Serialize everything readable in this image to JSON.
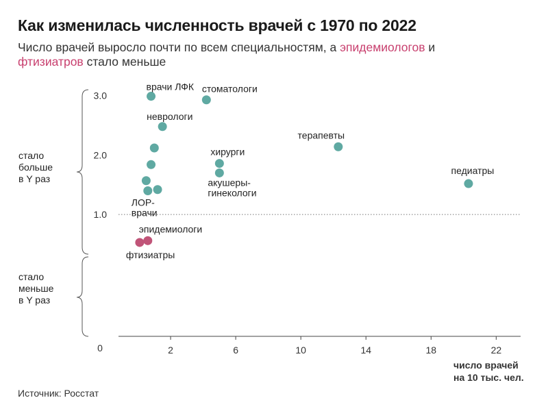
{
  "header": {
    "title": "Как изменилась численность врачей с 1970 по 2022",
    "subtitle_part1": "Число врачей выросло почти по всем специальностям, а ",
    "subtitle_hl1": "эпидемиологов",
    "subtitle_part2": " и ",
    "subtitle_hl2": "фтизиатров",
    "subtitle_part3": " стало меньше"
  },
  "side_labels": {
    "more": [
      "стало",
      "больше",
      "в Y раз"
    ],
    "less": [
      "стало",
      "меньше",
      "в Y раз"
    ]
  },
  "footer": {
    "source": "Источник: Росстат"
  },
  "colors": {
    "teal": "#5fa9a2",
    "red": "#c05478",
    "highlight": "#c83f6e"
  },
  "chart_data": {
    "type": "scatter",
    "xlabel": [
      "число врачей",
      "на 10 тыс. чел."
    ],
    "xticks": [
      "2",
      "6",
      "10",
      "14",
      "18",
      "22"
    ],
    "xtick_values": [
      2,
      6,
      10,
      14,
      18,
      22
    ],
    "yticks": [
      "1.0",
      "2.0",
      "3.0"
    ],
    "ytick_values": [
      1.0,
      2.0,
      3.0
    ],
    "origin_label": "0",
    "xlim": [
      -1.2,
      23.5
    ],
    "ylim": [
      -1.05,
      3.1
    ],
    "reference_line_y": 1.0,
    "points": [
      {
        "label": "врачи ЛФК",
        "x": 0.8,
        "y": 2.99,
        "color": "teal"
      },
      {
        "label": "стоматологи",
        "x": 4.2,
        "y": 2.93,
        "color": "teal"
      },
      {
        "label": "неврологи",
        "x": 1.5,
        "y": 2.48,
        "color": "teal"
      },
      {
        "label": "",
        "x": 1.0,
        "y": 2.12,
        "color": "teal"
      },
      {
        "label": "терапевты",
        "x": 12.3,
        "y": 2.14,
        "color": "teal"
      },
      {
        "label": "хирурги",
        "x": 5.0,
        "y": 1.86,
        "color": "teal"
      },
      {
        "label": "",
        "x": 0.8,
        "y": 1.84,
        "color": "teal"
      },
      {
        "label": "акушеры-гинекологи",
        "x": 5.0,
        "y": 1.7,
        "color": "teal"
      },
      {
        "label": "",
        "x": 0.5,
        "y": 1.57,
        "color": "teal"
      },
      {
        "label": "педиатры",
        "x": 20.3,
        "y": 1.52,
        "color": "teal"
      },
      {
        "label": "ЛОР-врачи",
        "x": 0.6,
        "y": 1.4,
        "color": "teal"
      },
      {
        "label": "",
        "x": 1.2,
        "y": 1.42,
        "color": "teal"
      },
      {
        "label": "эпидемиологи",
        "x": 0.6,
        "y": 0.56,
        "color": "red"
      },
      {
        "label": "фтизиатры",
        "x": 0.1,
        "y": 0.53,
        "color": "red"
      }
    ]
  }
}
